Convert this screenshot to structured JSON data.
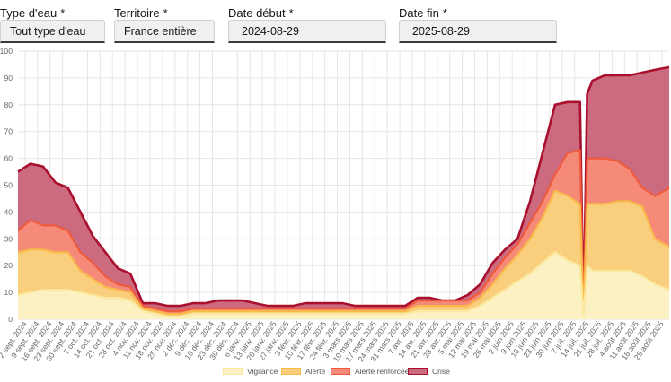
{
  "filters": [
    {
      "label": "Type d'eau",
      "required": "*",
      "value": "Tout type d'eau"
    },
    {
      "label": "Territoire",
      "required": "*",
      "value": "France entière"
    },
    {
      "label": "Date début",
      "required": "*",
      "value": "2024-08-29"
    },
    {
      "label": "Date fin",
      "required": "*",
      "value": "2025-08-29"
    }
  ],
  "colors": {
    "vigilance_fill": "#fbf1c3",
    "vigilance_line": "#fbe9a0",
    "alerte_fill": "#f9cf7e",
    "alerte_line": "#f8b84a",
    "alerte_renforcee_fill": "#f58a78",
    "alerte_renforcee_line": "#f05a3c",
    "crise_fill": "#cc6b80",
    "crise_line": "#a8102e",
    "grid": "#e6e6e6"
  },
  "chart_data": {
    "type": "area",
    "stacked": true,
    "ylim": [
      0,
      100
    ],
    "yticks": [
      0,
      10,
      20,
      30,
      40,
      50,
      60,
      70,
      80,
      90,
      100
    ],
    "grid": true,
    "legend_position": "bottom",
    "x_tick_labels": [
      "2 sept. 2024",
      "9 sept. 2024",
      "16 sept. 2024",
      "23 sept. 2024",
      "30 sept. 2024",
      "7 oct. 2024",
      "14 oct. 2024",
      "21 oct. 2024",
      "28 oct. 2024",
      "4 nov. 2024",
      "11 nov. 2024",
      "18 nov. 2024",
      "25 nov. 2024",
      "2 déc. 2024",
      "9 déc. 2024",
      "16 déc. 2024",
      "23 déc. 2024",
      "30 déc. 2024",
      "6 janv. 2025",
      "13 janv. 2025",
      "20 janv. 2025",
      "27 janv. 2025",
      "3 févr. 2025",
      "10 févr. 2025",
      "17 févr. 2025",
      "24 févr. 2025",
      "3 mars 2025",
      "10 mars 2025",
      "17 mars 2025",
      "24 mars 2025",
      "31 mars 2025",
      "7 avr. 2025",
      "14 avr. 2025",
      "21 avr. 2025",
      "28 avr. 2025",
      "5 mai 2025",
      "12 mai 2025",
      "19 mai 2025",
      "26 mai 2025",
      "2 juin 2025",
      "9 juin 2025",
      "16 juin 2025",
      "23 juin 2025",
      "30 juin 2025",
      "7 juil. 2025",
      "14 juil. 2025",
      "21 juil. 2025",
      "28 juil. 2025",
      "4 août 2025",
      "11 août 2025",
      "18 août 2025",
      "25 août 2025"
    ],
    "x": [
      "2024-08-29",
      "2024-09-05",
      "2024-09-12",
      "2024-09-19",
      "2024-09-26",
      "2024-10-03",
      "2024-10-10",
      "2024-10-17",
      "2024-10-24",
      "2024-10-31",
      "2024-11-07",
      "2024-11-14",
      "2024-11-21",
      "2024-11-28",
      "2024-12-05",
      "2024-12-12",
      "2024-12-19",
      "2024-12-26",
      "2025-01-02",
      "2025-01-09",
      "2025-01-16",
      "2025-01-23",
      "2025-01-30",
      "2025-02-06",
      "2025-02-13",
      "2025-02-20",
      "2025-02-27",
      "2025-03-06",
      "2025-03-13",
      "2025-03-20",
      "2025-03-27",
      "2025-04-03",
      "2025-04-10",
      "2025-04-17",
      "2025-04-24",
      "2025-05-01",
      "2025-05-08",
      "2025-05-15",
      "2025-05-22",
      "2025-05-29",
      "2025-06-05",
      "2025-06-12",
      "2025-06-19",
      "2025-06-26",
      "2025-07-03",
      "2025-07-10",
      "2025-07-12",
      "2025-07-14",
      "2025-07-17",
      "2025-07-24",
      "2025-07-31",
      "2025-08-07",
      "2025-08-14",
      "2025-08-21",
      "2025-08-29"
    ],
    "series": [
      {
        "name": "Vigilance",
        "values": [
          9,
          10,
          11,
          11,
          11,
          10,
          9,
          8,
          8,
          7,
          3,
          2,
          1,
          1,
          2,
          2,
          2,
          2,
          2,
          2,
          2,
          2,
          2,
          2,
          2,
          2,
          2,
          2,
          2,
          2,
          2,
          2,
          3,
          3,
          3,
          3,
          3,
          5,
          8,
          11,
          14,
          17,
          21,
          25,
          22,
          20,
          1,
          20,
          18,
          18,
          18,
          18,
          16,
          13,
          11
        ]
      },
      {
        "name": "Alerte",
        "values": [
          25,
          26,
          26,
          25,
          25,
          18,
          15,
          12,
          11,
          10,
          4,
          3,
          2,
          2,
          3,
          3,
          3,
          3,
          3,
          3,
          3,
          3,
          3,
          3,
          3,
          3,
          3,
          3,
          3,
          3,
          3,
          3,
          5,
          5,
          5,
          5,
          5,
          8,
          13,
          19,
          24,
          30,
          38,
          48,
          46,
          43,
          1,
          43,
          43,
          43,
          44,
          44,
          42,
          30,
          27
        ]
      },
      {
        "name": "Alerte renforcée",
        "values": [
          33,
          37,
          35,
          35,
          33,
          25,
          21,
          16,
          13,
          12,
          5,
          4,
          3,
          3,
          4,
          4,
          4,
          4,
          4,
          4,
          4,
          4,
          4,
          4,
          4,
          4,
          4,
          4,
          4,
          4,
          4,
          4,
          7,
          7,
          7,
          7,
          7,
          10,
          17,
          23,
          28,
          36,
          44,
          54,
          62,
          63,
          1,
          60,
          60,
          60,
          59,
          56,
          49,
          46,
          49
        ]
      },
      {
        "name": "Crise",
        "values": [
          55,
          58,
          57,
          51,
          49,
          40,
          31,
          25,
          19,
          17,
          6,
          6,
          5,
          5,
          6,
          6,
          7,
          7,
          7,
          6,
          5,
          5,
          5,
          6,
          6,
          6,
          6,
          5,
          5,
          5,
          5,
          5,
          8,
          8,
          7,
          7,
          9,
          13,
          21,
          26,
          30,
          44,
          62,
          80,
          81,
          81,
          1,
          84,
          89,
          91,
          91,
          91,
          92,
          93,
          94
        ]
      }
    ]
  },
  "legend": [
    {
      "label": "Vigilance",
      "fill": "#fbf1c3",
      "line": "#fbe9a0"
    },
    {
      "label": "Alerte",
      "fill": "#f9cf7e",
      "line": "#f8b84a"
    },
    {
      "label": "Alerte renforcée",
      "fill": "#f58a78",
      "line": "#f05a3c"
    },
    {
      "label": "Crise",
      "fill": "#cc6b80",
      "line": "#a8102e"
    }
  ]
}
